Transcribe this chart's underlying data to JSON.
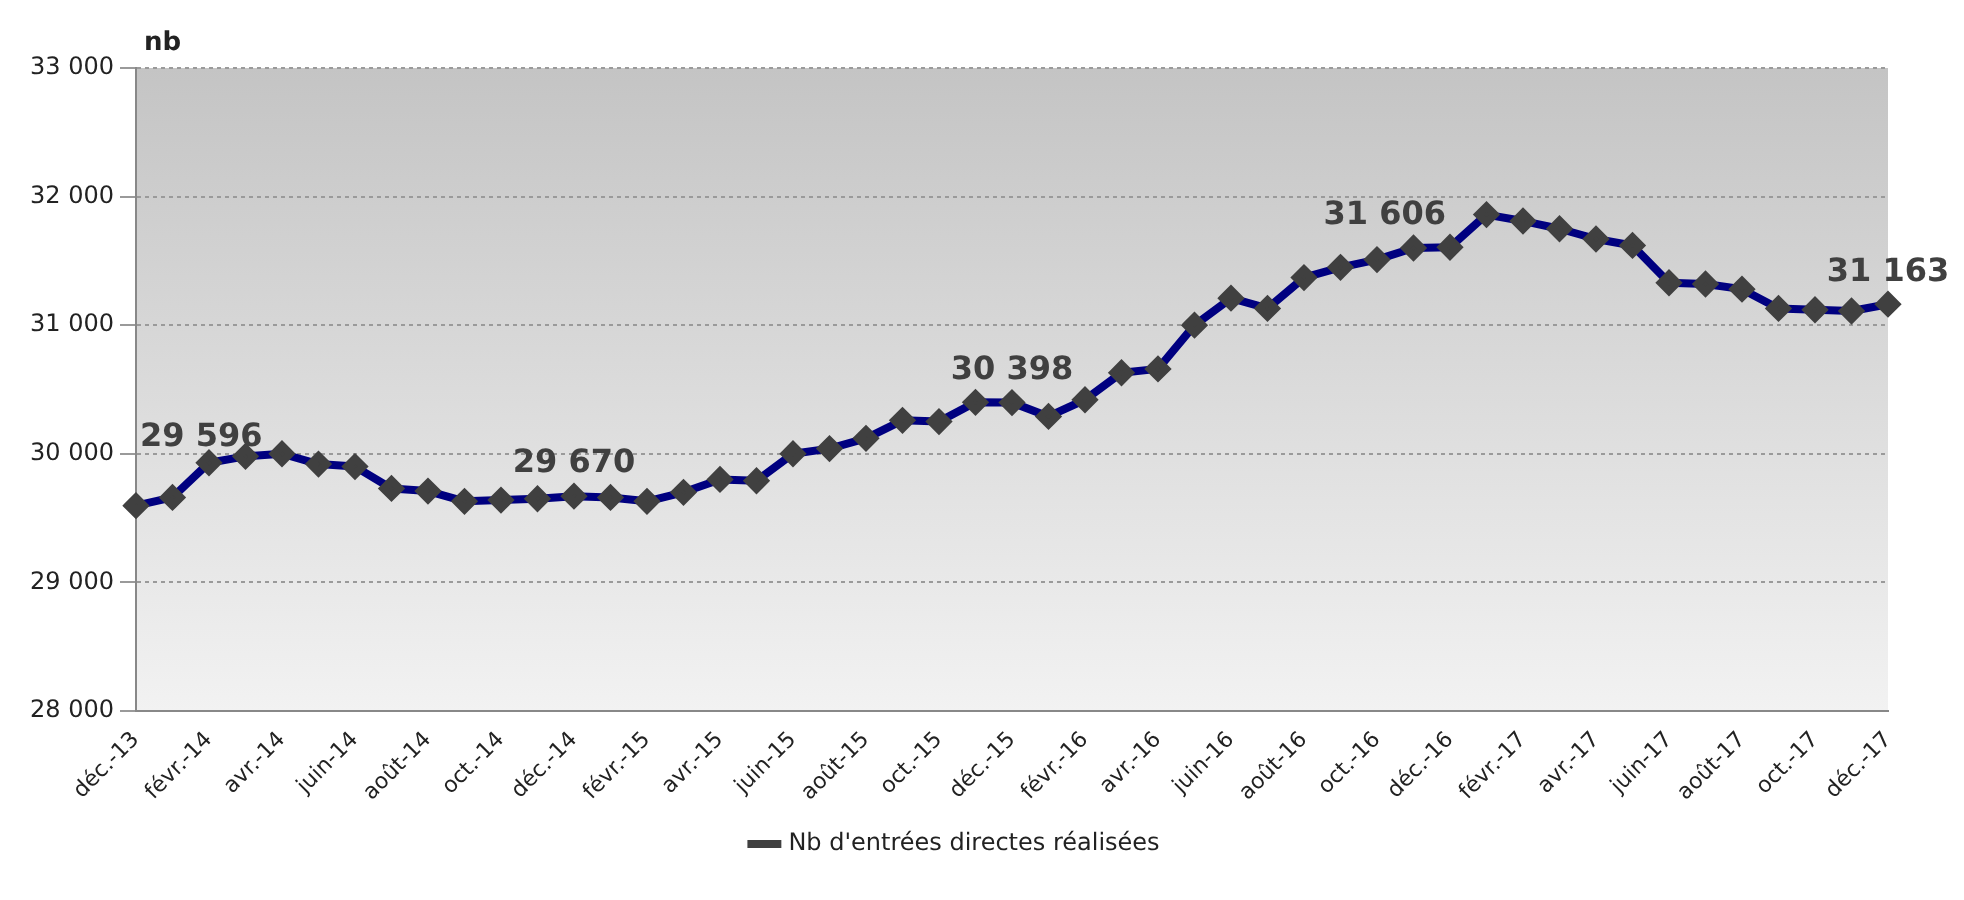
{
  "chart_data": {
    "type": "line",
    "ylabel": "nb",
    "categories": [
      "déc.-13",
      null,
      "févr.-14",
      null,
      "avr.-14",
      null,
      "juin-14",
      null,
      "août-14",
      null,
      "oct.-14",
      null,
      "déc.-14",
      null,
      "févr.-15",
      null,
      "avr.-15",
      null,
      "juin-15",
      null,
      "août-15",
      null,
      "oct.-15",
      null,
      "déc.-15",
      null,
      "févr.-16",
      null,
      "avr.-16",
      null,
      "juin-16",
      null,
      "août-16",
      null,
      "oct.-16",
      null,
      "déc.-16",
      null,
      "févr.-17",
      null,
      "avr.-17",
      null,
      "juin-17",
      null,
      "août-17",
      null,
      "oct.-17",
      null,
      "déc.-17"
    ],
    "series": [
      {
        "name": "Nb d'entrées directes réalisées",
        "color": "#000080",
        "values": [
          29596,
          29660,
          29930,
          29980,
          30000,
          29920,
          29900,
          29730,
          29710,
          29630,
          29640,
          29650,
          29670,
          29660,
          29630,
          29700,
          29800,
          29790,
          30000,
          30040,
          30120,
          30260,
          30250,
          30400,
          30398,
          30290,
          30420,
          30630,
          30660,
          31000,
          31210,
          31130,
          31370,
          31450,
          31510,
          31600,
          31606,
          31860,
          31810,
          31750,
          31670,
          31620,
          31330,
          31320,
          31280,
          31130,
          31120,
          31110,
          31163
        ],
        "value_labels": [
          "29 596",
          null,
          null,
          null,
          null,
          null,
          null,
          null,
          null,
          null,
          null,
          null,
          "29 670",
          null,
          null,
          null,
          null,
          null,
          null,
          null,
          null,
          null,
          null,
          null,
          "30 398",
          null,
          null,
          null,
          null,
          null,
          null,
          null,
          null,
          null,
          null,
          null,
          "31 606",
          null,
          null,
          null,
          null,
          null,
          null,
          null,
          null,
          null,
          null,
          null,
          "31 163"
        ]
      }
    ],
    "ylim": [
      28000,
      33000
    ],
    "yticks": [
      {
        "value": 28000,
        "label": "28 000"
      },
      {
        "value": 29000,
        "label": "29 000"
      },
      {
        "value": 30000,
        "label": "30 000"
      },
      {
        "value": 31000,
        "label": "31 000"
      },
      {
        "value": 32000,
        "label": "32 000"
      },
      {
        "value": 33000,
        "label": "33 000"
      }
    ],
    "grid": "y",
    "legend": "bottom",
    "marker": "diamond",
    "line_style": "solid"
  }
}
